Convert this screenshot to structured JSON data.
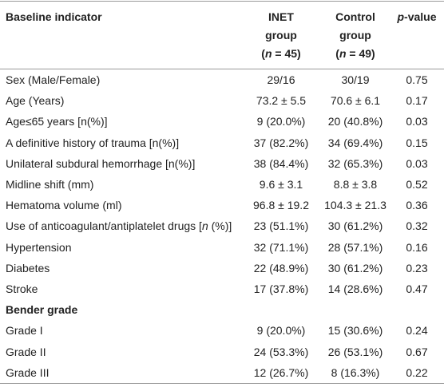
{
  "table": {
    "header": [
      [
        [
          {
            "text": "Baseline indicator"
          }
        ]
      ],
      [
        [
          {
            "text": "INET"
          }
        ],
        [
          {
            "text": "group"
          }
        ],
        [
          {
            "text": "("
          },
          {
            "text": "n",
            "italic": true
          },
          {
            "text": " = 45)"
          }
        ]
      ],
      [
        [
          {
            "text": "Control"
          }
        ],
        [
          {
            "text": "group"
          }
        ],
        [
          {
            "text": "("
          },
          {
            "text": "n",
            "italic": true
          },
          {
            "text": " = 49)"
          }
        ]
      ],
      [
        [
          {
            "text": "p",
            "italic": true
          },
          {
            "text": "-value"
          }
        ]
      ]
    ],
    "rows": [
      [
        "Sex (Male/Female)",
        "29/16",
        "30/19",
        "0.75"
      ],
      [
        "Age (Years)",
        "73.2 ± 5.5",
        "70.6 ± 6.1",
        "0.17"
      ],
      [
        "Age≤65 years [n(%)]",
        "9 (20.0%)",
        "20 (40.8%)",
        "0.03"
      ],
      [
        "A definitive history of trauma [n(%)]",
        "37 (82.2%)",
        "34 (69.4%)",
        "0.15"
      ],
      [
        "Unilateral subdural hemorrhage [n(%)]",
        "38 (84.4%)",
        "32 (65.3%)",
        "0.03"
      ],
      [
        "Midline shift (mm)",
        "9.6 ± 3.1",
        "8.8 ± 3.8",
        "0.52"
      ],
      [
        "Hematoma volume (ml)",
        "96.8 ± 19.2",
        "104.3 ± 21.3",
        "0.36"
      ],
      [
        [
          {
            "text": "Use of anticoagulant/antiplatelet drugs ["
          },
          {
            "text": "n",
            "italic": true
          },
          {
            "text": " (%)]"
          }
        ],
        "23 (51.1%)",
        "30 (61.2%)",
        "0.32"
      ],
      [
        "Hypertension",
        "32 (71.1%)",
        "28 (57.1%)",
        "0.16"
      ],
      [
        "Diabetes",
        "22 (48.9%)",
        "30 (61.2%)",
        "0.23"
      ],
      [
        "Stroke",
        "17 (37.8%)",
        "14 (28.6%)",
        "0.47"
      ],
      [
        "Bender grade"
      ],
      [
        "Grade I",
        "9 (20.0%)",
        "15 (30.6%)",
        "0.24"
      ],
      [
        "Grade II",
        "24 (53.3%)",
        "26 (53.1%)",
        "0.67"
      ],
      [
        "Grade III",
        "12 (26.7%)",
        "8 (16.3%)",
        "0.22"
      ]
    ]
  }
}
